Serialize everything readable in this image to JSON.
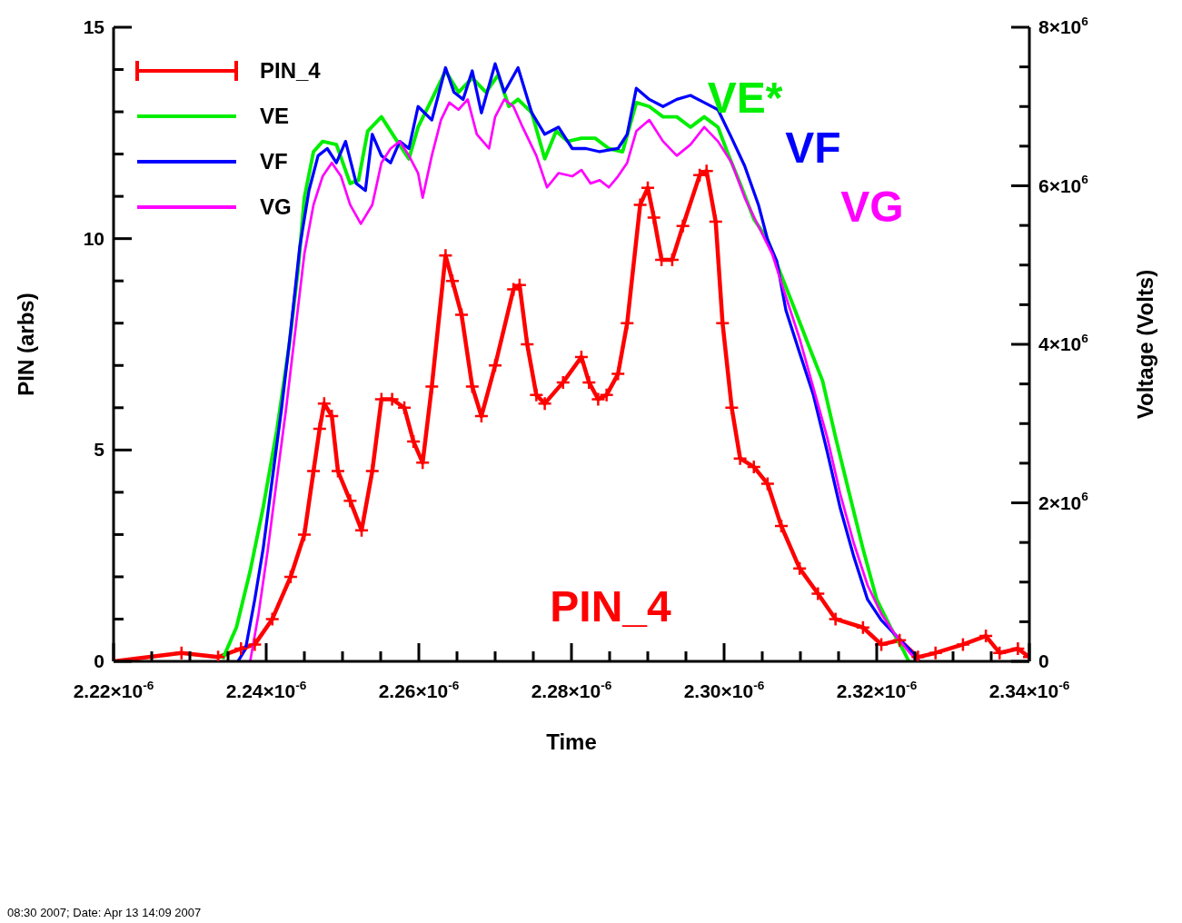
{
  "chart_data": {
    "type": "line",
    "xlabel": "Time",
    "ylabel": "PIN (arbs)",
    "y2label": "Voltage (Volts)",
    "xlim": [
      2.22e-06,
      2.34e-06
    ],
    "xticks": [
      {
        "value": 2.22e-06,
        "label": "2.22×10$^{-6}$"
      },
      {
        "value": 2.225e-06,
        "label": null
      },
      {
        "value": 2.23e-06,
        "label": null
      },
      {
        "value": 2.235e-06,
        "label": null
      },
      {
        "value": 2.24e-06,
        "label": "2.24×10$^{-6}$"
      },
      {
        "value": 2.245e-06,
        "label": null
      },
      {
        "value": 2.25e-06,
        "label": null
      },
      {
        "value": 2.255e-06,
        "label": null
      },
      {
        "value": 2.26e-06,
        "label": "2.26×10$^{-6}$"
      },
      {
        "value": 2.265e-06,
        "label": null
      },
      {
        "value": 2.27e-06,
        "label": null
      },
      {
        "value": 2.275e-06,
        "label": null
      },
      {
        "value": 2.28e-06,
        "label": "2.28×10$^{-6}$"
      },
      {
        "value": 2.285e-06,
        "label": null
      },
      {
        "value": 2.29e-06,
        "label": null
      },
      {
        "value": 2.295e-06,
        "label": null
      },
      {
        "value": 2.3e-06,
        "label": "2.30×10$^{-6}$"
      },
      {
        "value": 2.305e-06,
        "label": null
      },
      {
        "value": 2.31e-06,
        "label": null
      },
      {
        "value": 2.315e-06,
        "label": null
      },
      {
        "value": 2.32e-06,
        "label": "2.32×10$^{-6}$"
      },
      {
        "value": 2.325e-06,
        "label": null
      },
      {
        "value": 2.33e-06,
        "label": null
      },
      {
        "value": 2.335e-06,
        "label": null
      },
      {
        "value": 2.34e-06,
        "label": "2.34×10$^{-6}$"
      }
    ],
    "ylim": [
      0,
      15
    ],
    "yticks": [
      0,
      {
        "value": 1,
        "label": null
      },
      {
        "value": 2,
        "label": null
      },
      {
        "value": 3,
        "label": null
      },
      {
        "value": 4,
        "label": null
      },
      5,
      {
        "value": 6,
        "label": null
      },
      {
        "value": 7,
        "label": null
      },
      {
        "value": 8,
        "label": null
      },
      {
        "value": 9,
        "label": null
      },
      10,
      {
        "value": 11,
        "label": null
      },
      {
        "value": 12,
        "label": null
      },
      {
        "value": 13,
        "label": null
      },
      {
        "value": 14,
        "label": null
      },
      15
    ],
    "y2lim": [
      0,
      8000000
    ],
    "y2ticks": [
      0,
      {
        "value": 500000,
        "label": null
      },
      {
        "value": 1000000,
        "label": null
      },
      {
        "value": 1500000,
        "label": null
      },
      {
        "value": 2000000,
        "label": "2×10$^{6}$"
      },
      {
        "value": 2500000,
        "label": null
      },
      {
        "value": 3000000,
        "label": null
      },
      {
        "value": 3500000,
        "label": null
      },
      {
        "value": 4000000,
        "label": "4×10$^{6}$"
      },
      {
        "value": 4500000,
        "label": null
      },
      {
        "value": 5000000,
        "label": null
      },
      {
        "value": 5500000,
        "label": null
      },
      {
        "value": 6000000,
        "label": "6×10$^{6}$"
      },
      {
        "value": 6500000,
        "label": null
      },
      {
        "value": 7000000,
        "label": null
      },
      {
        "value": 7500000,
        "label": null
      },
      {
        "value": 8000000,
        "label": "8×10$^{6}$"
      }
    ],
    "grid": false,
    "legend": "top left",
    "line_style": "solid",
    "series": [
      {
        "name": "PIN_4",
        "color": "#ff0000",
        "marker": "cross",
        "x": [
          2.22e-06,
          2.2289e-06,
          2.2337e-06,
          2.2367e-06,
          2.2385e-06,
          2.2408e-06,
          2.2432e-06,
          2.245e-06,
          2.2462e-06,
          2.247e-06,
          2.2476e-06,
          2.2486e-06,
          2.2494e-06,
          2.251e-06,
          2.2525e-06,
          2.2539e-06,
          2.2551e-06,
          2.2565e-06,
          2.2581e-06,
          2.2593e-06,
          2.2605e-06,
          2.2617e-06,
          2.2635e-06,
          2.2644e-06,
          2.2656e-06,
          2.267e-06,
          2.2682e-06,
          2.27e-06,
          2.2724e-06,
          2.2732e-06,
          2.2742e-06,
          2.2754e-06,
          2.2765e-06,
          2.2789e-06,
          2.2813e-06,
          2.2823e-06,
          2.2835e-06,
          2.2846e-06,
          2.2861e-06,
          2.2873e-06,
          2.289e-06,
          2.29e-06,
          2.2908e-06,
          2.2918e-06,
          2.2932e-06,
          2.2946e-06,
          2.2968e-06,
          2.2977e-06,
          2.2989e-06,
          2.2998e-06,
          2.301e-06,
          2.3021e-06,
          2.3039e-06,
          2.3057e-06,
          2.3075e-06,
          2.3099e-06,
          2.3123e-06,
          2.3146e-06,
          2.3182e-06,
          2.3206e-06,
          2.323e-06,
          2.3254e-06,
          2.3277e-06,
          2.3313e-06,
          2.3343e-06,
          2.3361e-06,
          2.3385e-06,
          2.34e-06
        ],
        "values": [
          0,
          0.2,
          0.1,
          0.3,
          0.4,
          1.0,
          2.0,
          3.0,
          4.5,
          5.5,
          6.1,
          5.8,
          4.5,
          3.8,
          3.1,
          4.5,
          6.2,
          6.2,
          6.0,
          5.2,
          4.7,
          6.5,
          9.6,
          9.0,
          8.2,
          6.5,
          5.8,
          7.0,
          8.8,
          8.9,
          7.5,
          6.3,
          6.1,
          6.6,
          7.2,
          6.6,
          6.2,
          6.3,
          6.8,
          8.0,
          10.8,
          11.2,
          10.5,
          9.5,
          9.5,
          10.3,
          11.5,
          11.6,
          10.4,
          8.0,
          6.0,
          4.8,
          4.6,
          4.2,
          3.2,
          2.2,
          1.6,
          1.0,
          0.8,
          0.4,
          0.5,
          0.1,
          0.2,
          0.4,
          0.6,
          0.2,
          0.3,
          0.1
        ]
      },
      {
        "name": "VE",
        "color": "#00ee00",
        "axis": "y2",
        "x": [
          2.2343e-06,
          2.2361e-06,
          2.2379e-06,
          2.2396e-06,
          2.2414e-06,
          2.243e-06,
          2.2442e-06,
          2.245e-06,
          2.2462e-06,
          2.2474e-06,
          2.2492e-06,
          2.251e-06,
          2.2521e-06,
          2.2533e-06,
          2.2551e-06,
          2.2569e-06,
          2.2587e-06,
          2.2599e-06,
          2.2617e-06,
          2.2635e-06,
          2.2652e-06,
          2.267e-06,
          2.2688e-06,
          2.2704e-06,
          2.2718e-06,
          2.273e-06,
          2.2748e-06,
          2.2765e-06,
          2.278e-06,
          2.2795e-06,
          2.2813e-06,
          2.2831e-06,
          2.2849e-06,
          2.2867e-06,
          2.2885e-06,
          2.2902e-06,
          2.292e-06,
          2.2938e-06,
          2.2956e-06,
          2.2974e-06,
          2.2992e-06,
          2.3004e-06,
          2.3021e-06,
          2.3039e-06,
          2.3057e-06,
          2.3075e-06,
          2.3093e-06,
          2.3111e-06,
          2.3129e-06,
          2.3146e-06,
          2.3164e-06,
          2.3182e-06,
          2.32e-06,
          2.3218e-06,
          2.3236e-06,
          2.3242e-06
        ],
        "values": [
          30000,
          430000,
          1140000,
          1940000,
          2920000,
          3980000,
          4960000,
          5850000,
          6430000,
          6560000,
          6520000,
          6030000,
          6070000,
          6690000,
          6870000,
          6600000,
          6340000,
          6740000,
          7090000,
          7450000,
          7180000,
          7360000,
          7180000,
          7400000,
          7000000,
          7090000,
          6920000,
          6340000,
          6690000,
          6560000,
          6600000,
          6600000,
          6470000,
          6430000,
          7050000,
          7000000,
          6870000,
          6870000,
          6740000,
          6870000,
          6740000,
          6430000,
          6030000,
          5580000,
          5320000,
          4870000,
          4430000,
          3980000,
          3540000,
          2830000,
          2120000,
          1420000,
          780000,
          430000,
          120000,
          0
        ]
      },
      {
        "name": "VF",
        "color": "#0000ff",
        "axis": "y2",
        "x": [
          2.2363e-06,
          2.2373e-06,
          2.2385e-06,
          2.2396e-06,
          2.2408e-06,
          2.242e-06,
          2.2432e-06,
          2.2444e-06,
          2.2456e-06,
          2.2468e-06,
          2.248e-06,
          2.2492e-06,
          2.2504e-06,
          2.2518e-06,
          2.253e-06,
          2.2539e-06,
          2.2551e-06,
          2.2563e-06,
          2.2575e-06,
          2.2587e-06,
          2.2599e-06,
          2.2617e-06,
          2.2635e-06,
          2.2646e-06,
          2.2658e-06,
          2.267e-06,
          2.2682e-06,
          2.27e-06,
          2.2712e-06,
          2.273e-06,
          2.2748e-06,
          2.2765e-06,
          2.2783e-06,
          2.2801e-06,
          2.2819e-06,
          2.2837e-06,
          2.2861e-06,
          2.2873e-06,
          2.2885e-06,
          2.2902e-06,
          2.292e-06,
          2.2938e-06,
          2.2956e-06,
          2.2974e-06,
          2.2992e-06,
          2.301e-06,
          2.3027e-06,
          2.3045e-06,
          2.3057e-06,
          2.3069e-06,
          2.3081e-06,
          2.3099e-06,
          2.3117e-06,
          2.3135e-06,
          2.3152e-06,
          2.317e-06,
          2.3188e-06,
          2.3206e-06,
          2.3224e-06,
          2.3242e-06,
          2.3256e-06
        ],
        "values": [
          0,
          160000,
          780000,
          1420000,
          2300000,
          3180000,
          4160000,
          5230000,
          5940000,
          6380000,
          6470000,
          6290000,
          6560000,
          6030000,
          5940000,
          6650000,
          6380000,
          6290000,
          6560000,
          6470000,
          7000000,
          6830000,
          7490000,
          7180000,
          7090000,
          7450000,
          6920000,
          7540000,
          7180000,
          7490000,
          6920000,
          6650000,
          6740000,
          6470000,
          6470000,
          6430000,
          6470000,
          6650000,
          7230000,
          7090000,
          7000000,
          7090000,
          7140000,
          7050000,
          6960000,
          6600000,
          6250000,
          5760000,
          5320000,
          5050000,
          4430000,
          3890000,
          3360000,
          2650000,
          1940000,
          1320000,
          780000,
          520000,
          340000,
          160000,
          0
        ]
      },
      {
        "name": "VG",
        "color": "#ff00ff",
        "axis": "y2",
        "x": [
          2.2379e-06,
          2.239e-06,
          2.2402e-06,
          2.2414e-06,
          2.2426e-06,
          2.2438e-06,
          2.245e-06,
          2.2462e-06,
          2.2474e-06,
          2.2486e-06,
          2.2498e-06,
          2.251e-06,
          2.2524e-06,
          2.2539e-06,
          2.2551e-06,
          2.2563e-06,
          2.2575e-06,
          2.2587e-06,
          2.2599e-06,
          2.2605e-06,
          2.2617e-06,
          2.2629e-06,
          2.264e-06,
          2.2652e-06,
          2.2664e-06,
          2.2676e-06,
          2.2692e-06,
          2.27e-06,
          2.2712e-06,
          2.2724e-06,
          2.2736e-06,
          2.2754e-06,
          2.2768e-06,
          2.2783e-06,
          2.2801e-06,
          2.2813e-06,
          2.2825e-06,
          2.2837e-06,
          2.2849e-06,
          2.2861e-06,
          2.2873e-06,
          2.2885e-06,
          2.2902e-06,
          2.292e-06,
          2.2938e-06,
          2.2956e-06,
          2.2974e-06,
          2.2992e-06,
          2.301e-06,
          2.3027e-06,
          2.3045e-06,
          2.3063e-06,
          2.3081e-06,
          2.3099e-06,
          2.3117e-06,
          2.3135e-06,
          2.3152e-06,
          2.317e-06,
          2.3188e-06,
          2.3206e-06,
          2.3224e-06,
          2.3242e-06,
          2.3254e-06
        ],
        "values": [
          0,
          600000,
          1400000,
          2300000,
          3180000,
          4160000,
          5140000,
          5760000,
          6120000,
          6290000,
          6120000,
          5760000,
          5520000,
          5760000,
          6290000,
          6470000,
          6560000,
          6380000,
          6160000,
          5850000,
          6380000,
          6830000,
          7050000,
          6960000,
          7090000,
          6650000,
          6470000,
          6870000,
          7090000,
          7000000,
          6740000,
          6380000,
          5980000,
          6160000,
          6120000,
          6200000,
          6030000,
          6070000,
          5980000,
          6120000,
          6290000,
          6690000,
          6830000,
          6560000,
          6380000,
          6520000,
          6740000,
          6560000,
          6290000,
          5850000,
          5490000,
          5140000,
          4600000,
          4070000,
          3450000,
          2830000,
          2120000,
          1490000,
          960000,
          600000,
          340000,
          120000,
          0
        ]
      }
    ],
    "annotations": [
      "PIN_4",
      "VE*",
      "VF",
      "VG",
      "08:30 2007; Date: Apr 13 14:09 2007"
    ]
  }
}
